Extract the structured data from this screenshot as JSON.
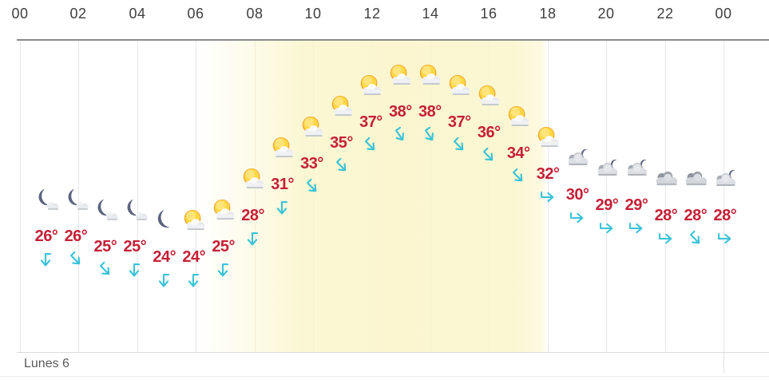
{
  "header": {
    "hour_ticks": [
      "00",
      "02",
      "04",
      "06",
      "08",
      "10",
      "12",
      "14",
      "16",
      "18",
      "20",
      "22",
      "00"
    ]
  },
  "footer": {
    "day_label": "Lunes 6"
  },
  "colors": {
    "temp_label": "#c52037",
    "wind_arrow": "#3ac3d8",
    "daylight_fill": "#faf5c8",
    "hour_tick": "#3f3f3f",
    "day_label": "#5a5a5a",
    "axis_line": "#8a8a8a",
    "grid_line": "#e8e8e8",
    "moon": "#5c6480",
    "sun": "#fed33c"
  },
  "chart_data": {
    "type": "line",
    "x_hours": [
      0,
      1,
      2,
      3,
      4,
      5,
      6,
      7,
      8,
      9,
      10,
      11,
      12,
      13,
      14,
      15,
      16,
      17,
      18,
      19,
      20,
      21,
      22,
      23
    ],
    "x_axis_tick_labels": [
      "00",
      "02",
      "04",
      "06",
      "08",
      "10",
      "12",
      "14",
      "16",
      "18",
      "20",
      "22",
      "00"
    ],
    "series": [
      {
        "name": "temperature_c",
        "values": [
          26,
          26,
          25,
          25,
          24,
          24,
          25,
          28,
          31,
          33,
          35,
          37,
          38,
          38,
          37,
          36,
          34,
          32,
          30,
          29,
          29,
          28,
          28,
          28
        ]
      }
    ],
    "temp_labels": [
      "26°",
      "26°",
      "25°",
      "25°",
      "24°",
      "24°",
      "25°",
      "28°",
      "31°",
      "33°",
      "35°",
      "37°",
      "38°",
      "38°",
      "37°",
      "36°",
      "34°",
      "32°",
      "30°",
      "29°",
      "29°",
      "28°",
      "28°",
      "28°"
    ],
    "weather_icons": [
      "moon-cloud",
      "moon-cloud",
      "moon-cloud",
      "moon-cloud",
      "moon",
      "sun-cloud",
      "sun-cloud",
      "sun-cloud",
      "sun-cloud",
      "sun-cloud",
      "sun-cloud",
      "sun-cloud",
      "sun-cloud",
      "sun-cloud",
      "sun-cloud",
      "sun-cloud",
      "sun-cloud",
      "sun-cloud",
      "cloud-moon",
      "cloud-moon",
      "cloud-moon",
      "cloud",
      "cloud",
      "cloud-moon"
    ],
    "wind_direction_arrows_deg": [
      90,
      45,
      45,
      90,
      90,
      90,
      90,
      90,
      90,
      45,
      45,
      45,
      55,
      55,
      45,
      45,
      45,
      0,
      0,
      0,
      0,
      0,
      45,
      0
    ],
    "daylight_hours": {
      "from": 6,
      "to": 18
    },
    "day_label": "Lunes 6"
  }
}
